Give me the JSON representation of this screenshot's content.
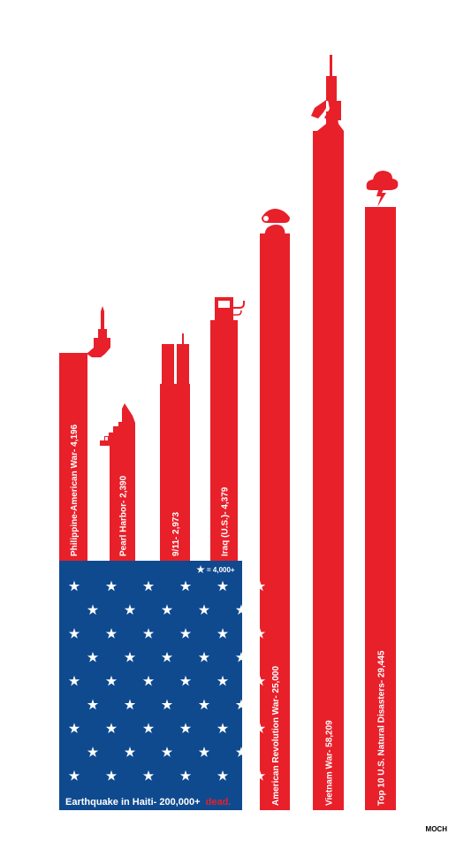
{
  "chart_data": {
    "type": "bar",
    "orientation": "vertical",
    "unit": "dead",
    "colors": {
      "bar": "#e8202a",
      "flag_blue": "#0f4a8f",
      "star": "#ffffff",
      "background": "#ffffff"
    },
    "bars": [
      {
        "label": "Philippine-American War- 4,196",
        "value": 4196,
        "icon": "bayonet-rifle-icon"
      },
      {
        "label": "Pearl Harbor- 2,390",
        "value": 2390,
        "icon": "battleship-icon"
      },
      {
        "label": "9/11- 2,973",
        "value": 2973,
        "icon": "twin-towers-icon"
      },
      {
        "label": "Iraq (U.S.)- 4,379",
        "value": 4379,
        "icon": "gas-pump-icon"
      },
      {
        "label": "American Revolution War- 25,000",
        "value": 25000,
        "icon": "george-washington-icon"
      },
      {
        "label": "Vietnam War- 58,209",
        "value": 58209,
        "icon": "assault-rifle-icon"
      },
      {
        "label": "Top 10 U.S. Natural Disasters- 29,445",
        "value": 29445,
        "icon": "storm-cloud-icon"
      }
    ],
    "haiti": {
      "label": "Earthquake in Haiti- 200,000+",
      "label_suffix": "dead.",
      "value": 200000,
      "stars": 50,
      "star_rows": [
        6,
        5,
        6,
        5,
        6,
        5,
        6,
        5,
        6
      ],
      "legend_text": "= 4,000+",
      "legend_value": 4000
    }
  },
  "credit": "MOCH"
}
